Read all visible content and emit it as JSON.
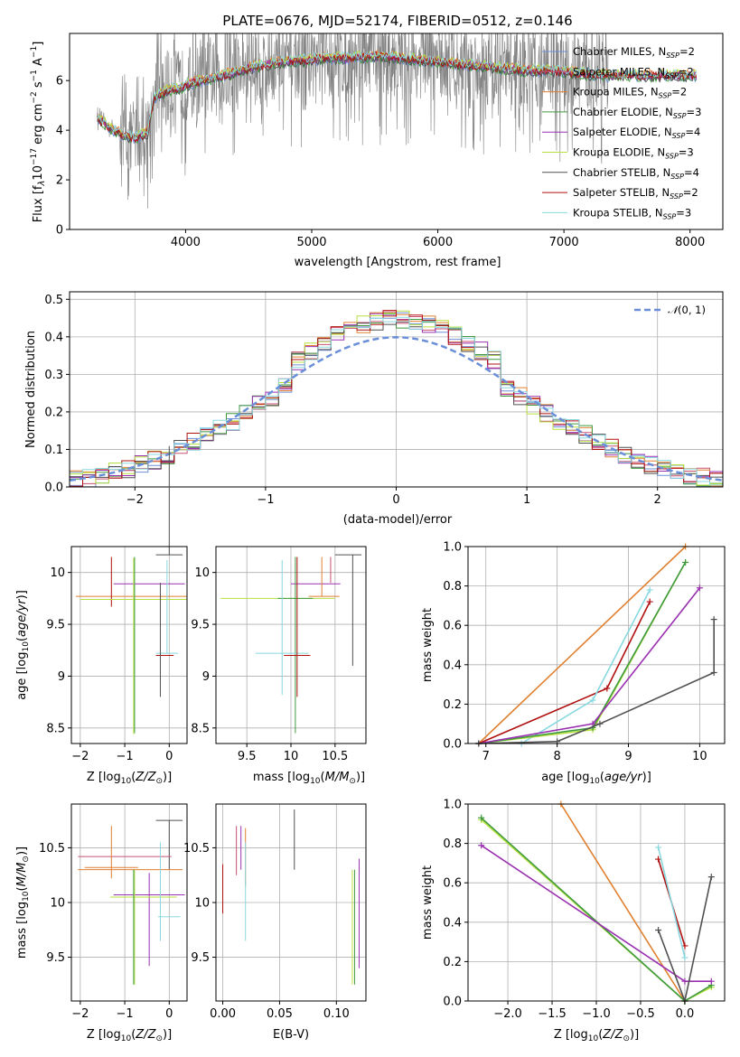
{
  "title": "PLATE=0676, MJD=52174, FIBERID=0512, z=0.146",
  "legend_labels": [
    "Chabrier MILES, N_SSP=2",
    "Salpeter MILES, N_SSP=2",
    "Kroupa MILES, N_SSP=2",
    "Chabrier ELODIE, N_SSP=3",
    "Salpeter ELODIE, N_SSP=4",
    "Kroupa ELODIE, N_SSP=3",
    "Chabrier STELIB, N_SSP=4",
    "Salpeter STELIB, N_SSP=2",
    "Kroupa STELIB, N_SSP=3"
  ],
  "colors": {
    "data_gray": "#808080",
    "chabrier_miles": "#6f8fd8",
    "salpeter_miles": "#c85070",
    "kroupa_miles": "#e08030",
    "chabrier_elodie": "#3f9a3f",
    "salpeter_elodie": "#9a30b0",
    "kroupa_elodie": "#b8e040",
    "chabrier_stelib": "#505050",
    "salpeter_stelib": "#b01010",
    "kroupa_stelib": "#88d8e0",
    "normal_curve": "#6a8fd8",
    "grid": "#b0b0b0"
  },
  "chart_data": [
    {
      "id": "spectrum",
      "type": "line",
      "title": "PLATE=0676, MJD=52174, FIBERID=0512, z=0.146",
      "xlabel": "wavelength [Angstrom, rest frame]",
      "ylabel": "Flux [f_λ 10^-17 erg cm^-2 s^-1 A^-1]",
      "xlim": [
        3080,
        8260
      ],
      "ylim": [
        0,
        7.9
      ],
      "xticks": [
        4000,
        5000,
        6000,
        7000,
        8000
      ],
      "yticks": [
        0,
        2,
        4,
        6
      ],
      "grid": false,
      "legend": "upper right",
      "model_shape": {
        "x": [
          3300,
          3400,
          3500,
          3600,
          3700,
          3750,
          3850,
          3950,
          4050,
          4150,
          4300,
          4500,
          4700,
          4900,
          5100,
          5300,
          5500,
          5700,
          5900,
          6100,
          6300,
          6500,
          6700,
          6900,
          7100,
          7300
        ],
        "y": [
          4.5,
          4.1,
          3.8,
          3.7,
          3.9,
          5.3,
          5.6,
          5.7,
          5.9,
          6.0,
          6.2,
          6.5,
          6.7,
          6.8,
          6.9,
          6.9,
          7.0,
          6.9,
          6.8,
          6.7,
          6.6,
          6.5,
          6.4,
          6.4,
          6.3,
          6.2
        ]
      }
    },
    {
      "id": "residuals",
      "type": "histogram",
      "xlabel": "(data-model)/error",
      "ylabel": "Normed distribution",
      "xlim": [
        -2.5,
        2.5
      ],
      "ylim": [
        0,
        0.52
      ],
      "xticks": [
        -2,
        -1,
        0,
        1,
        2
      ],
      "yticks": [
        0.0,
        0.1,
        0.2,
        0.3,
        0.4,
        0.5
      ],
      "grid": true,
      "legend": "upper right",
      "legend_label": "N(0,1)",
      "bin_width": 0.1
    },
    {
      "id": "age_vs_Z",
      "type": "errorbar",
      "xlabel": "Z [log10(Z/Z☉)]",
      "ylabel": "age [log10(age/yr)]",
      "xlim": [
        -2.2,
        0.4
      ],
      "ylim": [
        8.35,
        10.25
      ],
      "xticks": [
        -2,
        -1,
        0
      ],
      "yticks": [
        8.5,
        9.0,
        9.5,
        10.0
      ],
      "grid": true
    },
    {
      "id": "age_vs_mass",
      "type": "errorbar",
      "xlabel": "mass [log10(M/M☉)]",
      "ylabel": "",
      "xlim": [
        9.15,
        10.85
      ],
      "ylim": [
        8.35,
        10.25
      ],
      "xticks": [
        9.5,
        10.0,
        10.5
      ],
      "yticks": [
        8.5,
        9.0,
        9.5,
        10.0
      ],
      "grid": true
    },
    {
      "id": "massweight_vs_age",
      "type": "line",
      "xlabel": "age [log10(age/yr)]",
      "ylabel": "mass weight",
      "xlim": [
        6.75,
        10.35
      ],
      "ylim": [
        0,
        1
      ],
      "xticks": [
        7,
        8,
        9,
        10
      ],
      "yticks": [
        0.0,
        0.2,
        0.4,
        0.6,
        0.8,
        1.0
      ],
      "grid": true,
      "series": [
        {
          "color": "#e08030",
          "x": [
            6.9,
            9.8
          ],
          "y": [
            0.0,
            1.0
          ]
        },
        {
          "color": "#b01010",
          "x": [
            6.9,
            8.7,
            9.3
          ],
          "y": [
            0.0,
            0.28,
            0.72
          ]
        },
        {
          "color": "#88d8e0",
          "x": [
            7.5,
            8.5,
            9.3
          ],
          "y": [
            0.0,
            0.22,
            0.78
          ]
        },
        {
          "color": "#b8e040",
          "x": [
            6.9,
            8.5,
            9.8
          ],
          "y": [
            0.0,
            0.07,
            0.92
          ]
        },
        {
          "color": "#3f9a3f",
          "x": [
            6.9,
            8.5,
            9.8
          ],
          "y": [
            0.0,
            0.08,
            0.92
          ]
        },
        {
          "color": "#9a30b0",
          "x": [
            6.9,
            8.5,
            10.0
          ],
          "y": [
            0.0,
            0.1,
            0.79
          ]
        },
        {
          "color": "#505050",
          "x": [
            6.9,
            8.0,
            8.6,
            10.2,
            10.2
          ],
          "y": [
            0.0,
            0.01,
            0.1,
            0.36,
            0.63
          ]
        }
      ]
    },
    {
      "id": "mass_vs_Z",
      "type": "errorbar",
      "xlabel": "Z [log10(Z/Z☉)]",
      "ylabel": "mass [log10(M/M☉)]",
      "xlim": [
        -2.2,
        0.4
      ],
      "ylim": [
        9.1,
        10.9
      ],
      "xticks": [
        -2,
        -1,
        0
      ],
      "yticks": [
        9.5,
        10.0,
        10.5
      ],
      "grid": true
    },
    {
      "id": "mass_vs_ebv",
      "type": "errorbar",
      "xlabel": "E(B-V)",
      "ylabel": "",
      "xlim": [
        -0.006,
        0.126
      ],
      "ylim": [
        9.1,
        10.9
      ],
      "xticks": [
        0.0,
        0.05,
        0.1
      ],
      "yticks": [
        9.5,
        10.0,
        10.5
      ],
      "grid": true
    },
    {
      "id": "massweight_vs_Z",
      "type": "line",
      "xlabel": "Z [log10(Z/Z☉)]",
      "ylabel": "mass weight",
      "xlim": [
        -2.45,
        0.45
      ],
      "ylim": [
        0,
        1
      ],
      "xticks": [
        -2.0,
        -1.5,
        -1.0,
        -0.5,
        0.0
      ],
      "yticks": [
        0.0,
        0.2,
        0.4,
        0.6,
        0.8,
        1.0
      ],
      "grid": true,
      "series": [
        {
          "color": "#e08030",
          "x": [
            -1.4,
            0.0
          ],
          "y": [
            1.0,
            0.0
          ]
        },
        {
          "color": "#b01010",
          "x": [
            -0.3,
            0.0
          ],
          "y": [
            0.72,
            0.28
          ]
        },
        {
          "color": "#88d8e0",
          "x": [
            -0.3,
            0.0
          ],
          "y": [
            0.78,
            0.22
          ]
        },
        {
          "color": "#b8e040",
          "x": [
            -2.3,
            0.0,
            0.3
          ],
          "y": [
            0.92,
            0.0,
            0.07
          ]
        },
        {
          "color": "#3f9a3f",
          "x": [
            -2.3,
            0.0,
            0.3
          ],
          "y": [
            0.93,
            0.0,
            0.08
          ]
        },
        {
          "color": "#9a30b0",
          "x": [
            -2.3,
            0.0,
            0.3
          ],
          "y": [
            0.79,
            0.1,
            0.1
          ]
        },
        {
          "color": "#505050",
          "x": [
            -0.3,
            0.0,
            0.3
          ],
          "y": [
            0.36,
            0.0,
            0.63
          ]
        }
      ]
    }
  ]
}
